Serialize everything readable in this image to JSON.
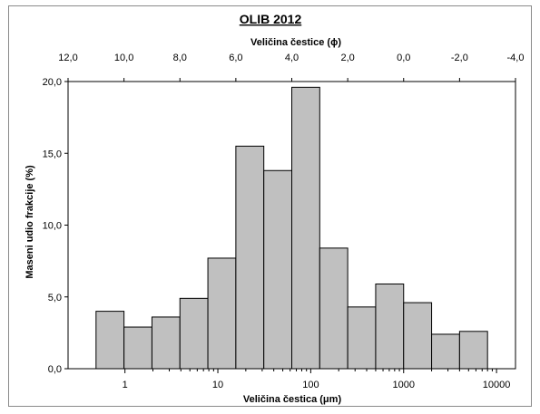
{
  "chart_data": {
    "type": "bar",
    "title": "OLIB 2012",
    "xlabel": "Veličina čestica (μm)",
    "ylabel": "Maseni udio frakcije (%)",
    "x2label": "Veličina čestice (ϕ)",
    "ylim": [
      0,
      20
    ],
    "yticks": [
      "0,0",
      "5,0",
      "10,0",
      "15,0",
      "20,0"
    ],
    "xscale": "log",
    "xticks": [
      "1",
      "10",
      "100",
      "1000",
      "10000"
    ],
    "x2ticks": [
      "12,0",
      "10,0",
      "8,0",
      "6,0",
      "4,0",
      "2,0",
      "0,0",
      "-2,0",
      "-4,0"
    ],
    "x2lim": [
      12,
      -4
    ],
    "bin_edges_phi": [
      11,
      10,
      9,
      8,
      7,
      6,
      5,
      4,
      3,
      2,
      1,
      0,
      -1,
      -2,
      -3
    ],
    "values": [
      4.0,
      2.9,
      3.6,
      4.9,
      7.7,
      15.5,
      13.8,
      19.6,
      8.4,
      4.3,
      5.9,
      4.6,
      2.4,
      2.6
    ],
    "bar_color": "#c0c0c0",
    "grid": false
  }
}
